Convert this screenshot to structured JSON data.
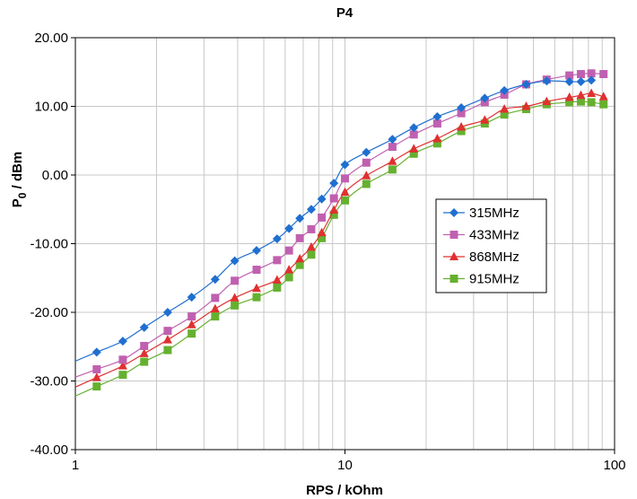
{
  "chart_data": {
    "type": "line",
    "title": "P4",
    "xlabel": "RPS / kOhm",
    "ylabel_main": "P",
    "ylabel_sub": "0",
    "ylabel_rest": " / dBm",
    "x_scale": "log",
    "xlim": [
      1,
      100
    ],
    "ylim": [
      -40,
      20
    ],
    "x_ticks": [
      1,
      10,
      100
    ],
    "x_tick_labels": [
      "1",
      "10",
      "100"
    ],
    "y_ticks": [
      -40,
      -30,
      -20,
      -10,
      0,
      10,
      20
    ],
    "y_tick_labels": [
      "-40.00",
      "-30.00",
      "-20.00",
      "-10.00",
      "0.00",
      "10.00",
      "20.00"
    ],
    "grid": true,
    "legend_position": "right-center",
    "series": [
      {
        "name": "315MHz",
        "color": "#1f6fd0",
        "marker": "diamond",
        "x": [
          1.2,
          1.5,
          1.8,
          2.2,
          2.7,
          3.3,
          3.9,
          4.7,
          5.6,
          6.2,
          6.8,
          7.5,
          8.2,
          9.1,
          10,
          12,
          15,
          18,
          22,
          27,
          33,
          39,
          47,
          56,
          68,
          75,
          82
        ],
        "values": [
          -25.8,
          -24.2,
          -22.2,
          -20.0,
          -17.8,
          -15.2,
          -12.5,
          -11.0,
          -9.3,
          -7.8,
          -6.3,
          -5.0,
          -3.5,
          -1.2,
          1.5,
          3.3,
          5.2,
          6.9,
          8.5,
          9.8,
          11.2,
          12.3,
          13.2,
          13.7,
          13.6,
          13.6,
          13.8
        ]
      },
      {
        "name": "433MHz",
        "color": "#c060b0",
        "marker": "square",
        "x": [
          1.2,
          1.5,
          1.8,
          2.2,
          2.7,
          3.3,
          3.9,
          4.7,
          5.6,
          6.2,
          6.8,
          7.5,
          8.2,
          9.1,
          10,
          12,
          15,
          18,
          22,
          27,
          33,
          39,
          47,
          56,
          68,
          75,
          82,
          91
        ],
        "values": [
          -28.3,
          -26.9,
          -24.9,
          -22.7,
          -20.6,
          -17.9,
          -15.4,
          -13.8,
          -12.4,
          -11.0,
          -9.2,
          -7.9,
          -6.2,
          -3.4,
          -0.5,
          1.8,
          4.1,
          5.9,
          7.5,
          9.0,
          10.6,
          11.7,
          13.2,
          13.9,
          14.5,
          14.7,
          14.8,
          14.7
        ]
      },
      {
        "name": "868MHz",
        "color": "#e03030",
        "marker": "triangle",
        "x": [
          1.2,
          1.5,
          1.8,
          2.2,
          2.7,
          3.3,
          3.9,
          4.7,
          5.6,
          6.2,
          6.8,
          7.5,
          8.2,
          9.1,
          10,
          12,
          15,
          18,
          22,
          27,
          33,
          39,
          47,
          56,
          68,
          75,
          82,
          91
        ],
        "values": [
          -29.5,
          -27.8,
          -26.0,
          -24.0,
          -21.8,
          -19.5,
          -17.9,
          -16.5,
          -15.3,
          -13.8,
          -12.2,
          -10.5,
          -8.4,
          -5.1,
          -2.5,
          -0.1,
          2.0,
          3.8,
          5.3,
          7.0,
          8.0,
          9.6,
          10.0,
          10.7,
          11.3,
          11.6,
          11.9,
          11.4
        ]
      },
      {
        "name": "915MHz",
        "color": "#66b030",
        "marker": "square",
        "x": [
          1.2,
          1.5,
          1.8,
          2.2,
          2.7,
          3.3,
          3.9,
          4.7,
          5.6,
          6.2,
          6.8,
          7.5,
          8.2,
          9.1,
          10,
          12,
          15,
          18,
          22,
          27,
          33,
          39,
          47,
          56,
          68,
          75,
          82,
          91
        ],
        "values": [
          -30.8,
          -29.1,
          -27.2,
          -25.5,
          -23.1,
          -20.6,
          -19.0,
          -17.8,
          -16.4,
          -14.9,
          -13.1,
          -11.6,
          -9.2,
          -5.8,
          -3.7,
          -1.3,
          0.8,
          3.1,
          4.6,
          6.4,
          7.5,
          8.8,
          9.6,
          10.3,
          10.6,
          10.7,
          10.6,
          10.3
        ]
      }
    ]
  }
}
